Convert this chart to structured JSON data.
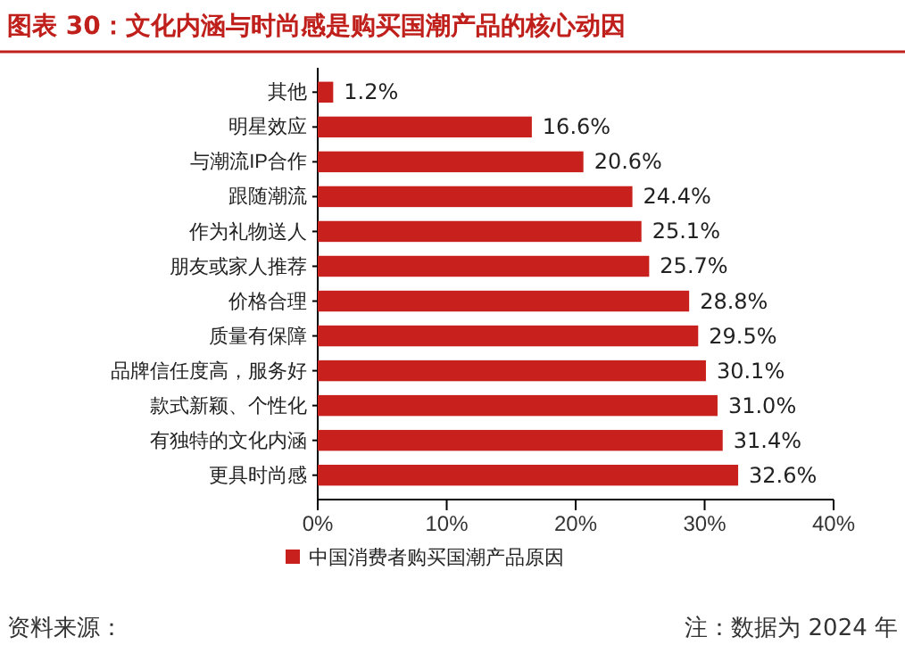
{
  "chart_data": {
    "type": "bar",
    "orientation": "horizontal",
    "title": "图表 30：文化内涵与时尚感是购买国潮产品的核心动因",
    "categories": [
      "其他",
      "明星效应",
      "与潮流IP合作",
      "跟随潮流",
      "作为礼物送人",
      "朋友或家人推荐",
      "价格合理",
      "质量有保障",
      "品牌信任度高，服务好",
      "款式新颖、个性化",
      "有独特的文化内涵",
      "更具时尚感"
    ],
    "series": [
      {
        "name": "中国消费者购买国潮产品原因",
        "color": "#c8201c",
        "values": [
          1.2,
          16.6,
          20.6,
          24.4,
          25.1,
          25.7,
          28.8,
          29.5,
          30.1,
          31.0,
          31.4,
          32.6
        ],
        "value_labels": [
          "1.2%",
          "16.6%",
          "20.6%",
          "24.4%",
          "25.1%",
          "25.7%",
          "28.8%",
          "29.5%",
          "30.1%",
          "31.0%",
          "31.4%",
          "32.6%"
        ]
      }
    ],
    "xlim": [
      0,
      40
    ],
    "xticks": [
      {
        "value": 0,
        "label": "0%"
      },
      {
        "value": 10,
        "label": "10%"
      },
      {
        "value": 20,
        "label": "20%"
      },
      {
        "value": 30,
        "label": "30%"
      },
      {
        "value": 40,
        "label": "40%"
      }
    ],
    "legend": "bottom",
    "grid": false,
    "annotations": [
      "资料来源：",
      "注：数据为 2024 年"
    ]
  }
}
